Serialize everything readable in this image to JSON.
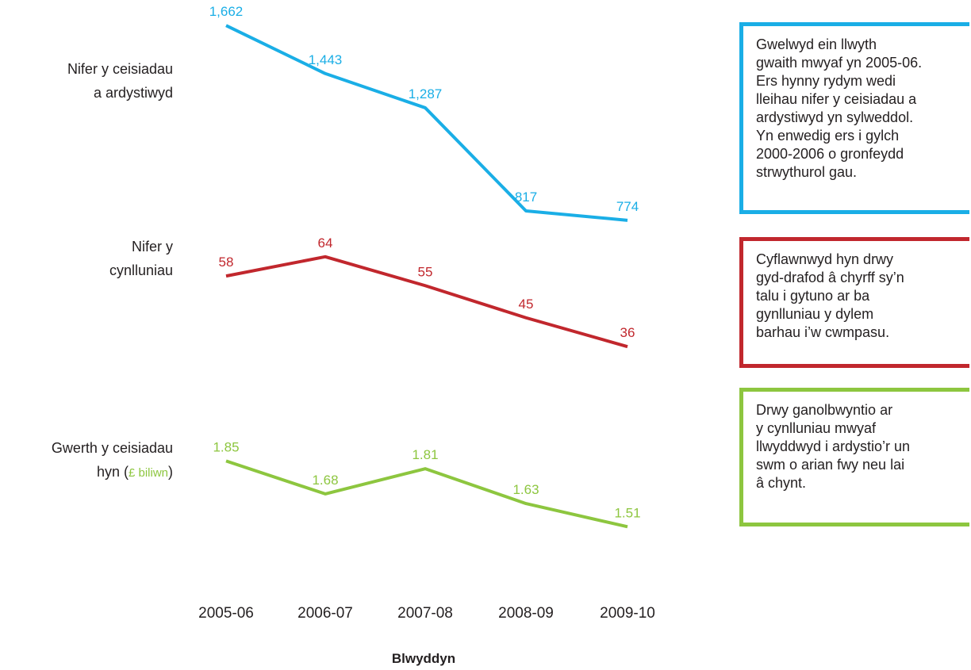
{
  "chart_data": {
    "type": "line",
    "xlabel": "Blwyddyn",
    "categories": [
      "2005-06",
      "2006-07",
      "2007-08",
      "2008-09",
      "2009-10"
    ],
    "series": [
      {
        "id": "ceisiadau",
        "label_line1": "Nifer y ceisiadau",
        "label_line2": "a ardystiwyd",
        "values": [
          1662,
          1443,
          1287,
          817,
          774
        ],
        "value_labels": [
          "1,662",
          "1,443",
          "1,287",
          "817",
          "774"
        ],
        "color": "#1aaee6",
        "ylim": [
          600,
          1800
        ]
      },
      {
        "id": "cynlluniau",
        "label_line1": "Nifer y",
        "label_line2": "cynlluniau",
        "values": [
          58,
          64,
          55,
          45,
          36
        ],
        "value_labels": [
          "58",
          "64",
          "55",
          "45",
          "36"
        ],
        "color": "#c1272d",
        "ylim": [
          20,
          80
        ]
      },
      {
        "id": "gwerth",
        "label_line1": "Gwerth y ceisiadau",
        "label_line2_pre": "hyn (",
        "label_unit": "£ biliwn",
        "label_line2_post": ")",
        "values": [
          1.85,
          1.68,
          1.81,
          1.63,
          1.51
        ],
        "value_labels": [
          "1.85",
          "1.68",
          "1.81",
          "1.63",
          "1.51"
        ],
        "color": "#8dc63f",
        "ylim": [
          1.2,
          2.2
        ]
      }
    ]
  },
  "callouts": [
    {
      "text": "Gwelwyd ein llwyth\ngwaith mwyaf yn 2005-06.\nErs hynny rydym wedi\nlleihau nifer y ceisiadau a\nardystiwyd yn sylweddol.\nYn enwedig ers i gylch\n2000-2006 o gronfeydd\nstrwythurol gau.",
      "color": "#1aaee6"
    },
    {
      "text": "Cyflawnwyd hyn drwy\ngyd-drafod â chyrff sy’n\ntalu i gytuno ar ba\ngynlluniau y dylem\nbarhau i’w cwmpasu.",
      "color": "#c1272d"
    },
    {
      "text": "Drwy ganolbwyntio ar\ny cynlluniau mwyaf\nllwyddwyd i ardystio’r un\nswm o arian fwy neu lai\nâ chynt.",
      "color": "#8dc63f"
    }
  ]
}
